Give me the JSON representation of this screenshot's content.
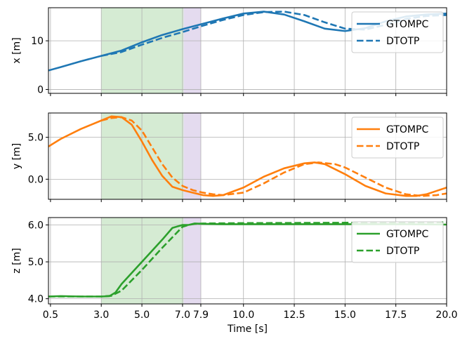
{
  "chart_data": [
    {
      "type": "line",
      "ylabel": "x [m]",
      "xlabel": "",
      "xlim": [
        0.4,
        20.0
      ],
      "ylim": [
        -0.8,
        16.8
      ],
      "yticks": [
        0,
        10
      ],
      "ytick_labels": [
        "0",
        "10"
      ],
      "grid": true,
      "legend_position": "top-right",
      "shaded_regions": [
        {
          "from": 3.0,
          "to": 7.05,
          "color": "#d5ebd3"
        },
        {
          "from": 7.05,
          "to": 7.9,
          "color": "#e4dbef"
        }
      ],
      "series": [
        {
          "name": "GTOMPC",
          "style": "solid",
          "color": "#1f77b4",
          "x": [
            0.4,
            1.0,
            2.0,
            3.0,
            4.0,
            5.0,
            6.0,
            7.0,
            8.0,
            9.0,
            10.0,
            11.0,
            12.0,
            13.0,
            14.0,
            15.0,
            16.0,
            17.0,
            18.0,
            19.0,
            20.0
          ],
          "y": [
            3.9,
            4.6,
            5.8,
            6.9,
            8.0,
            9.7,
            11.2,
            12.4,
            13.5,
            14.6,
            15.6,
            16.0,
            15.4,
            14.0,
            12.5,
            12.0,
            12.6,
            14.0,
            15.0,
            15.4,
            15.6
          ]
        },
        {
          "name": "DTOTP",
          "style": "dashed",
          "color": "#1f77b4",
          "x": [
            3.0,
            4.0,
            5.0,
            6.0,
            7.0,
            8.0,
            9.0,
            10.0,
            11.0,
            12.0,
            13.0,
            14.0,
            15.0,
            16.0,
            17.0,
            18.0,
            19.0,
            20.0
          ],
          "y": [
            6.9,
            7.7,
            9.2,
            10.6,
            11.8,
            13.1,
            14.3,
            15.3,
            15.9,
            16.0,
            15.3,
            13.8,
            12.5,
            12.3,
            13.3,
            14.5,
            15.1,
            15.3
          ]
        }
      ]
    },
    {
      "type": "line",
      "ylabel": "y [m]",
      "xlabel": "",
      "xlim": [
        0.4,
        20.0
      ],
      "ylim": [
        -2.4,
        7.9
      ],
      "yticks": [
        -0.0,
        5.0
      ],
      "ytick_labels": [
        "0.0",
        "5.0"
      ],
      "grid": true,
      "legend_position": "top-right",
      "shaded_regions": [
        {
          "from": 3.0,
          "to": 7.05,
          "color": "#d5ebd3"
        },
        {
          "from": 7.05,
          "to": 7.9,
          "color": "#e4dbef"
        }
      ],
      "series": [
        {
          "name": "GTOMPC",
          "style": "solid",
          "color": "#ff7f0e",
          "x": [
            0.4,
            1.0,
            2.0,
            3.0,
            3.5,
            4.0,
            4.5,
            5.0,
            5.5,
            6.0,
            6.5,
            7.0,
            7.5,
            8.0,
            8.5,
            9.0,
            10.0,
            11.0,
            12.0,
            13.0,
            13.5,
            14.0,
            15.0,
            16.0,
            17.0,
            18.0,
            18.5,
            19.0,
            19.5,
            20.0
          ],
          "y": [
            3.9,
            4.8,
            6.0,
            7.0,
            7.5,
            7.4,
            6.5,
            4.5,
            2.3,
            0.4,
            -0.9,
            -1.3,
            -1.6,
            -1.9,
            -2.0,
            -1.9,
            -1.0,
            0.3,
            1.3,
            1.9,
            2.0,
            1.8,
            0.6,
            -0.8,
            -1.7,
            -2.0,
            -2.0,
            -1.8,
            -1.4,
            -1.0
          ]
        },
        {
          "name": "DTOTP",
          "style": "dashed",
          "color": "#ff7f0e",
          "x": [
            3.0,
            3.5,
            4.0,
            4.5,
            5.0,
            5.5,
            6.0,
            6.5,
            7.0,
            7.5,
            8.0,
            8.5,
            9.0,
            10.0,
            11.0,
            12.0,
            13.0,
            13.7,
            14.5,
            15.0,
            16.0,
            17.0,
            18.0,
            18.8,
            19.5,
            20.0
          ],
          "y": [
            7.0,
            7.3,
            7.4,
            7.0,
            5.8,
            3.8,
            1.8,
            0.2,
            -0.8,
            -1.3,
            -1.6,
            -1.8,
            -1.9,
            -1.6,
            -0.5,
            0.8,
            1.8,
            2.0,
            1.8,
            1.4,
            0.2,
            -1.0,
            -1.8,
            -2.0,
            -1.9,
            -1.7
          ]
        }
      ]
    },
    {
      "type": "line",
      "ylabel": "z [m]",
      "xlabel": "Time [s]",
      "xlim": [
        0.4,
        20.0
      ],
      "ylim": [
        3.86,
        6.2
      ],
      "yticks": [
        4.0,
        5.0,
        6.0
      ],
      "ytick_labels": [
        "4.0",
        "5.0",
        "6.0"
      ],
      "xticks": [
        0.5,
        3.0,
        5.0,
        7.0,
        7.9,
        10.0,
        12.5,
        15.0,
        17.5,
        20.0
      ],
      "xtick_labels": [
        "0.5",
        "3.0",
        "5.0",
        "7.0",
        "7.9",
        "10.0",
        "12.5",
        "15.0",
        "17.5",
        "20.0"
      ],
      "grid": true,
      "legend_position": "top-right",
      "shaded_regions": [
        {
          "from": 3.0,
          "to": 7.05,
          "color": "#d5ebd3"
        },
        {
          "from": 7.05,
          "to": 7.9,
          "color": "#e4dbef"
        }
      ],
      "series": [
        {
          "name": "GTOMPC",
          "style": "solid",
          "color": "#2ca02c",
          "x": [
            0.4,
            1.0,
            2.0,
            3.0,
            3.4,
            3.7,
            4.0,
            5.0,
            6.0,
            6.5,
            7.0,
            7.3,
            7.6,
            8.0,
            9.0,
            12.0,
            15.0,
            18.0,
            20.0
          ],
          "y": [
            4.06,
            4.07,
            4.06,
            4.06,
            4.07,
            4.17,
            4.4,
            5.0,
            5.6,
            5.92,
            6.0,
            6.0,
            6.04,
            6.03,
            6.02,
            6.02,
            6.02,
            6.02,
            6.01
          ]
        },
        {
          "name": "DTOTP",
          "style": "dashed",
          "color": "#2ca02c",
          "x": [
            0.4,
            1.0,
            2.0,
            3.0,
            3.5,
            4.0,
            5.0,
            6.0,
            7.0,
            7.3,
            7.6,
            8.0,
            10.0,
            15.0,
            20.0
          ],
          "y": [
            4.06,
            4.06,
            4.06,
            4.06,
            4.08,
            4.22,
            4.78,
            5.38,
            5.95,
            6.0,
            6.03,
            6.04,
            6.05,
            6.06,
            6.07
          ]
        }
      ]
    }
  ]
}
